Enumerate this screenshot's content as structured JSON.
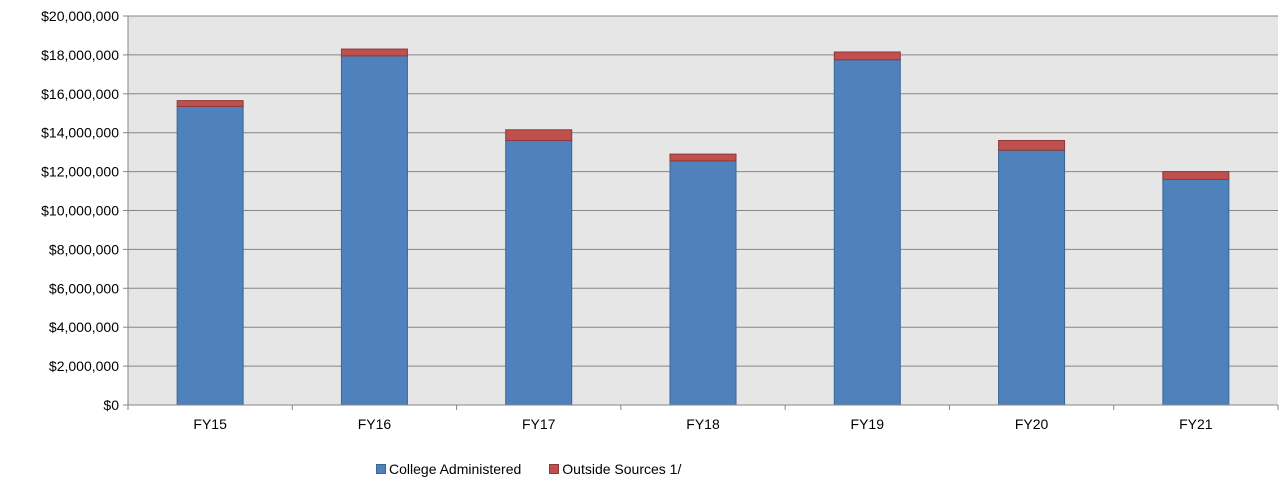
{
  "chart_data": {
    "type": "bar",
    "stacked": true,
    "categories": [
      "FY15",
      "FY16",
      "FY17",
      "FY18",
      "FY19",
      "FY20",
      "FY21"
    ],
    "series": [
      {
        "name": "College Administered",
        "color": "#4F81BD",
        "values": [
          15350000,
          17950000,
          13600000,
          12550000,
          17750000,
          13100000,
          11600000
        ]
      },
      {
        "name": "Outside Sources 1/",
        "color": "#C0504D",
        "values": [
          300000,
          350000,
          550000,
          350000,
          400000,
          500000,
          400000
        ]
      }
    ],
    "ylim": [
      0,
      20000000
    ],
    "yticks": [
      0,
      2000000,
      4000000,
      6000000,
      8000000,
      10000000,
      12000000,
      14000000,
      16000000,
      18000000,
      20000000
    ],
    "ytick_labels": [
      "$0",
      "$2,000,000",
      "$4,000,000",
      "$6,000,000",
      "$8,000,000",
      "$10,000,000",
      "$12,000,000",
      "$14,000,000",
      "$16,000,000",
      "$18,000,000",
      "$20,000,000"
    ],
    "grid": true,
    "legend_position": "bottom",
    "plot_background": "#E6E6E6"
  }
}
